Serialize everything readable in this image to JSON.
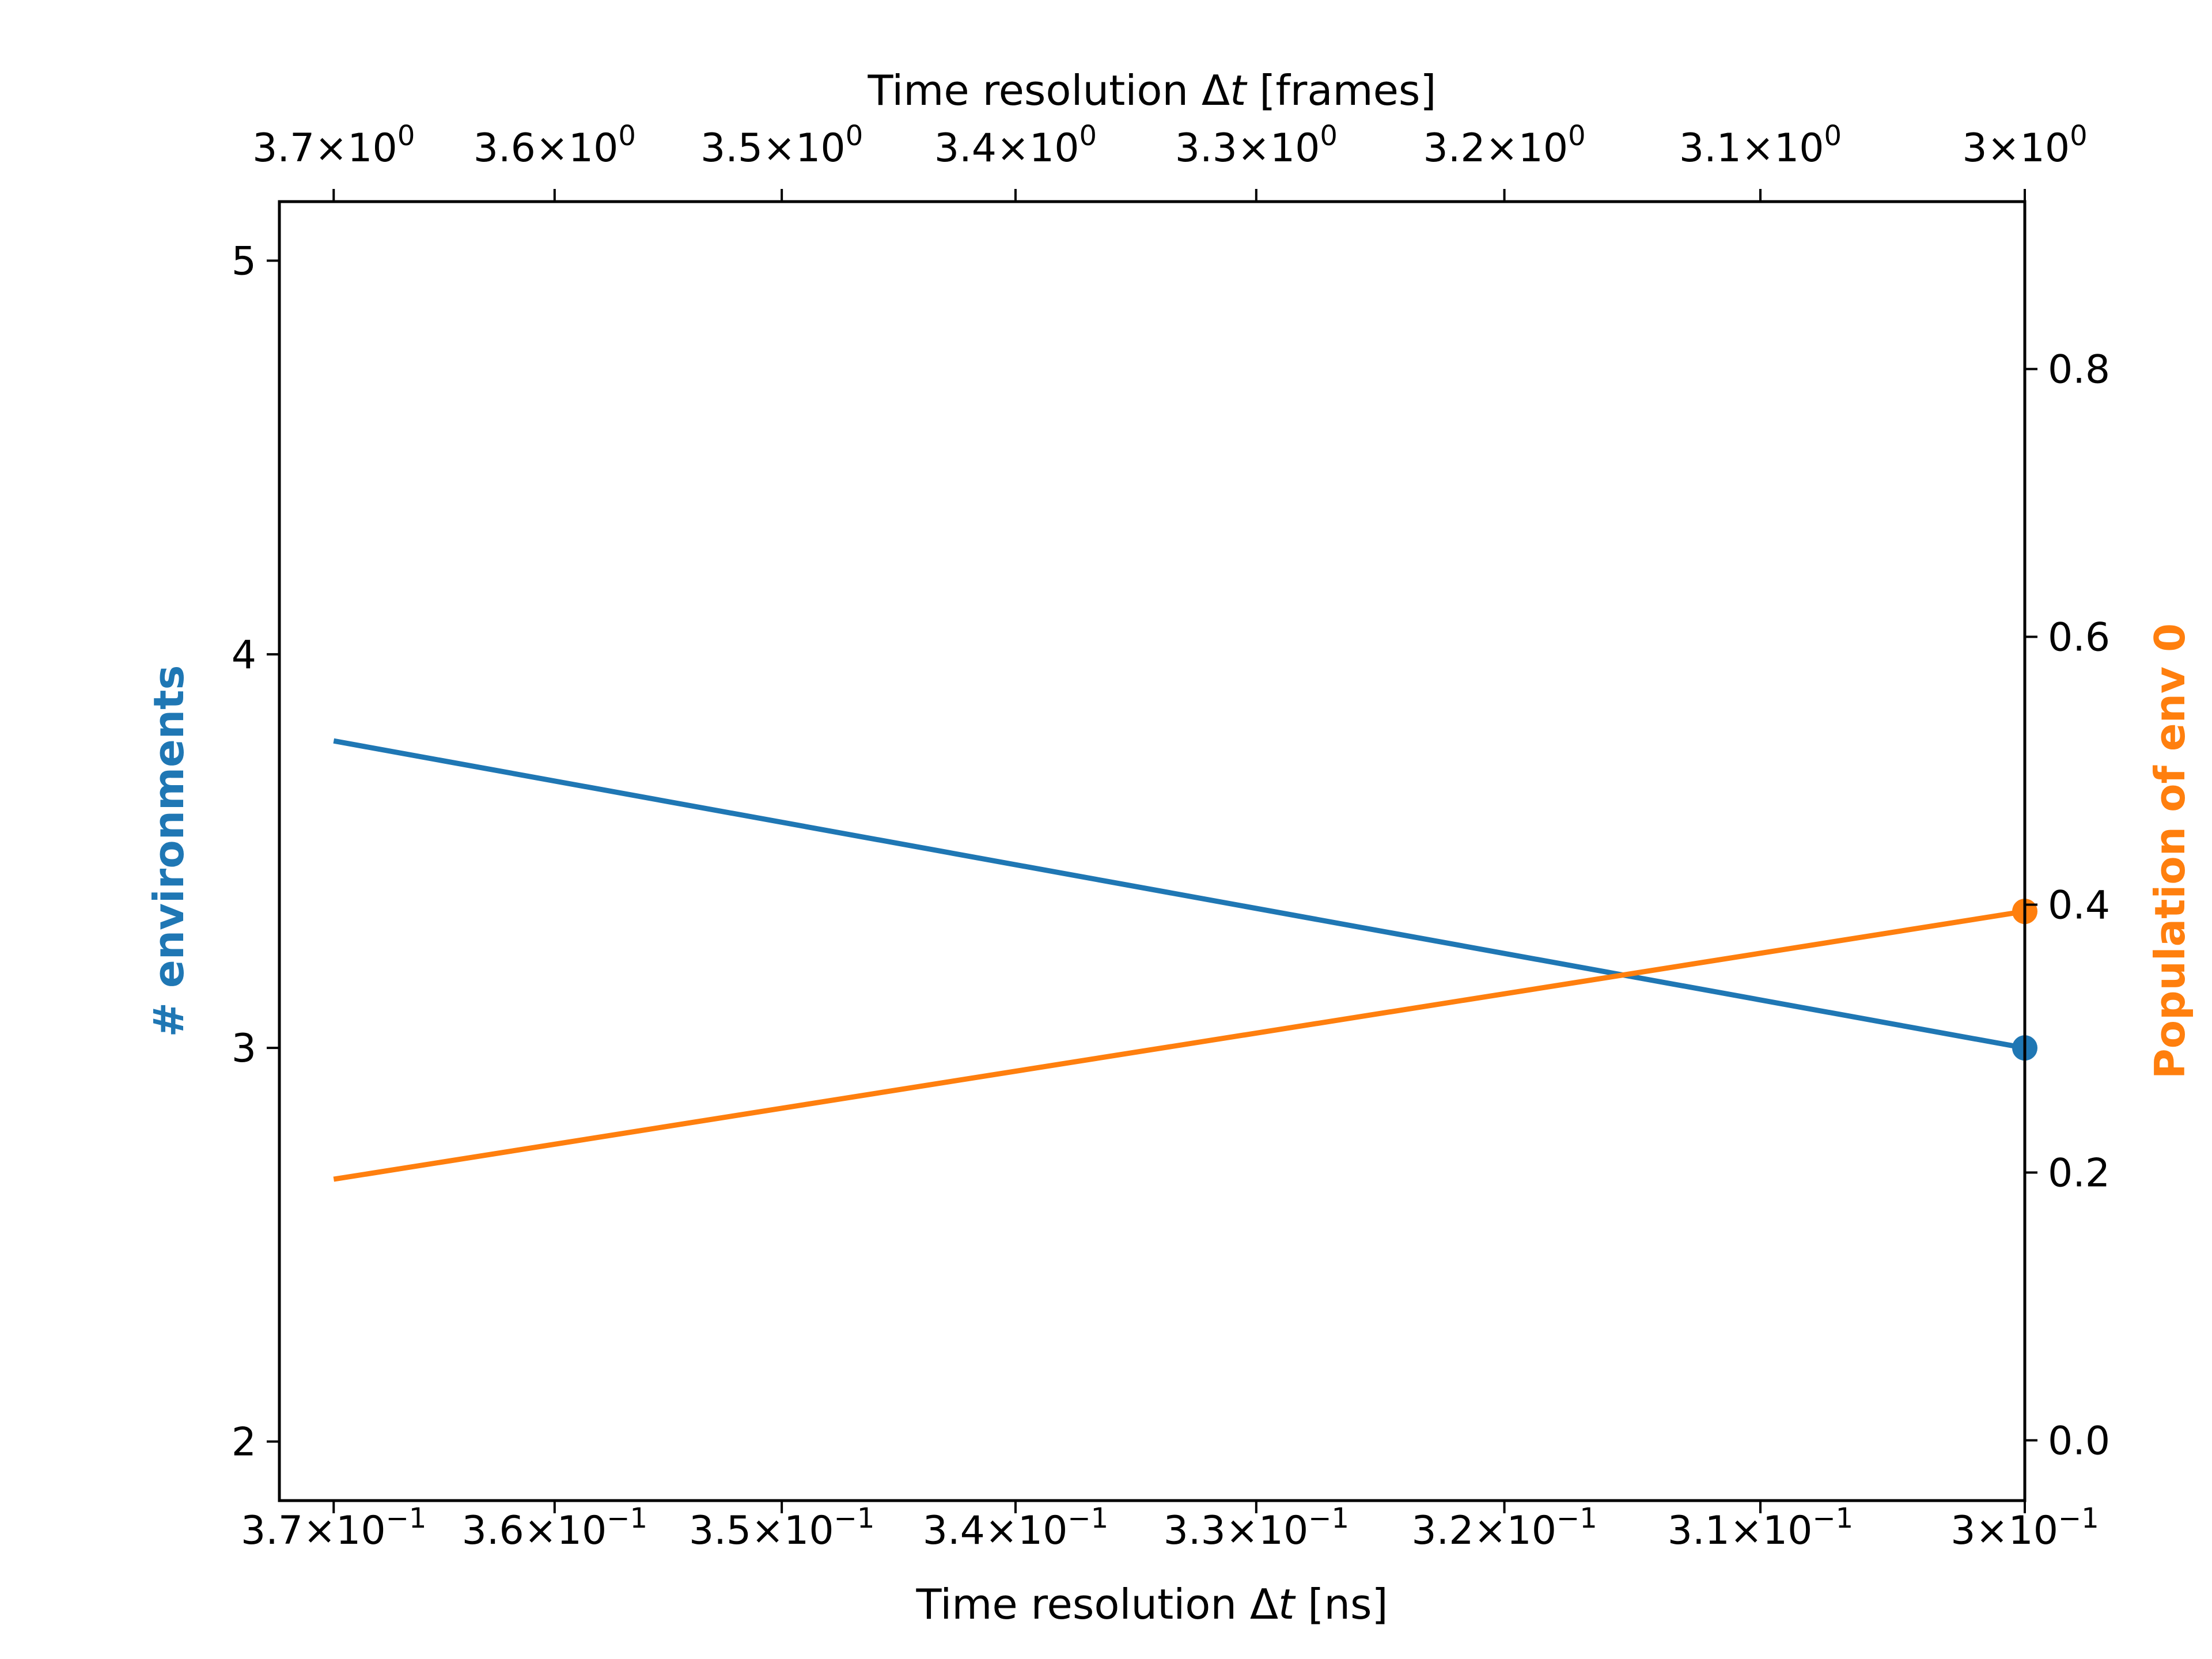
{
  "chart_data": {
    "type": "line",
    "x": [
      0.37,
      0.3
    ],
    "x_scale": "log",
    "xlim": [
      0.3725,
      0.3
    ],
    "series": [
      {
        "values": [
          3.78,
          3.0
        ],
        "color": "#1f77b4",
        "axis": "left",
        "end_marker": true
      },
      {
        "values": [
          0.195,
          0.395
        ],
        "color": "#ff7f0e",
        "axis": "right",
        "end_marker": true
      }
    ],
    "xlabel_bottom": {
      "prefix": "Time resolution Δ",
      "var": "t",
      "suffix": " [ns]"
    },
    "xlabel_top": {
      "prefix": "Time resolution Δ",
      "var": "t",
      "suffix": " [frames]"
    },
    "ylabel_left": "# environments",
    "ylabel_right": "Population of env 0",
    "ylim_left": [
      1.85,
      5.15
    ],
    "ylim_right": [
      -0.045,
      0.925
    ],
    "yticks_left": [
      2,
      3,
      4,
      5
    ],
    "yticks_right": [
      "0.0",
      "0.2",
      "0.4",
      "0.6",
      "0.8"
    ],
    "xticks_bottom": [
      {
        "v": 0.37,
        "m": "3.7",
        "e": "−1"
      },
      {
        "v": 0.36,
        "m": "3.6",
        "e": "−1"
      },
      {
        "v": 0.35,
        "m": "3.5",
        "e": "−1"
      },
      {
        "v": 0.34,
        "m": "3.4",
        "e": "−1"
      },
      {
        "v": 0.33,
        "m": "3.3",
        "e": "−1"
      },
      {
        "v": 0.32,
        "m": "3.2",
        "e": "−1"
      },
      {
        "v": 0.31,
        "m": "3.1",
        "e": "−1"
      },
      {
        "v": 0.3,
        "m": "3",
        "e": "−1"
      }
    ],
    "xticks_top": [
      {
        "v": 0.37,
        "m": "3.7",
        "e": "0"
      },
      {
        "v": 0.36,
        "m": "3.6",
        "e": "0"
      },
      {
        "v": 0.35,
        "m": "3.5",
        "e": "0"
      },
      {
        "v": 0.34,
        "m": "3.4",
        "e": "0"
      },
      {
        "v": 0.33,
        "m": "3.3",
        "e": "0"
      },
      {
        "v": 0.32,
        "m": "3.2",
        "e": "0"
      },
      {
        "v": 0.31,
        "m": "3.1",
        "e": "0"
      },
      {
        "v": 0.3,
        "m": "3",
        "e": "0"
      }
    ],
    "grid": false
  }
}
